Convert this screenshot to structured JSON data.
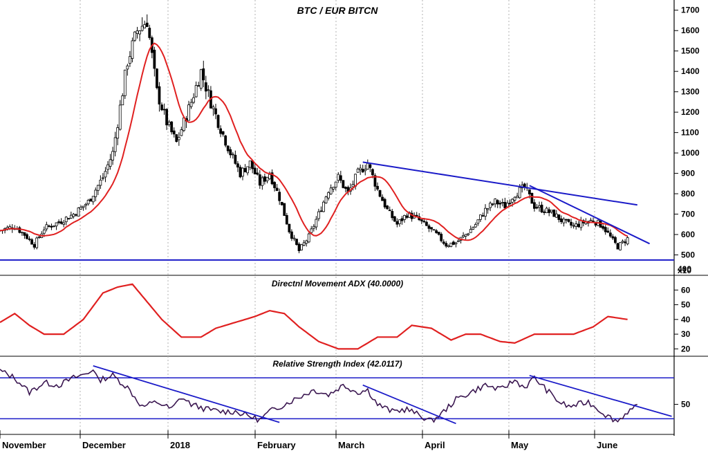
{
  "chart_data": [
    {
      "type": "candlestick",
      "title": "BTC / EUR BITCN",
      "scale_label": "x10",
      "y_ticks": [
        500,
        600,
        700,
        800,
        900,
        1000,
        1100,
        1200,
        1300,
        1400,
        1500,
        1600,
        1700
      ],
      "y_tick_labels": [
        "500",
        "600",
        "700",
        "800",
        "900",
        "1000",
        "1100",
        "1200",
        "1300",
        "1400",
        "1500",
        "1600",
        "1700"
      ],
      "y_extra_label": "400",
      "ylim": [
        400,
        1750
      ],
      "moving_average": {
        "color": "#e02020"
      },
      "price_keypoints": [
        [
          0,
          620
        ],
        [
          6,
          640
        ],
        [
          10,
          600
        ],
        [
          14,
          550
        ],
        [
          18,
          630
        ],
        [
          24,
          660
        ],
        [
          30,
          700
        ],
        [
          36,
          760
        ],
        [
          42,
          880
        ],
        [
          46,
          1000
        ],
        [
          52,
          1450
        ],
        [
          56,
          1600
        ],
        [
          60,
          1650
        ],
        [
          64,
          1300
        ],
        [
          68,
          1150
        ],
        [
          72,
          1050
        ],
        [
          78,
          1250
        ],
        [
          82,
          1400
        ],
        [
          86,
          1250
        ],
        [
          90,
          1120
        ],
        [
          94,
          1000
        ],
        [
          98,
          900
        ],
        [
          102,
          950
        ],
        [
          106,
          850
        ],
        [
          110,
          900
        ],
        [
          114,
          780
        ],
        [
          118,
          620
        ],
        [
          122,
          520
        ],
        [
          126,
          590
        ],
        [
          130,
          700
        ],
        [
          134,
          820
        ],
        [
          138,
          880
        ],
        [
          142,
          800
        ],
        [
          146,
          900
        ],
        [
          150,
          950
        ],
        [
          154,
          820
        ],
        [
          158,
          720
        ],
        [
          162,
          650
        ],
        [
          166,
          700
        ],
        [
          170,
          680
        ],
        [
          174,
          640
        ],
        [
          178,
          600
        ],
        [
          182,
          550
        ],
        [
          186,
          560
        ],
        [
          190,
          600
        ],
        [
          194,
          650
        ],
        [
          198,
          720
        ],
        [
          202,
          760
        ],
        [
          206,
          740
        ],
        [
          210,
          800
        ],
        [
          214,
          830
        ],
        [
          218,
          740
        ],
        [
          222,
          720
        ],
        [
          226,
          700
        ],
        [
          230,
          660
        ],
        [
          234,
          640
        ],
        [
          238,
          660
        ],
        [
          242,
          670
        ],
        [
          246,
          640
        ],
        [
          250,
          570
        ],
        [
          252,
          540
        ],
        [
          256,
          580
        ]
      ],
      "trendlines": [
        {
          "from": [
            148,
            955
          ],
          "to": [
            260,
            745
          ],
          "color": "#1a1ac8"
        },
        {
          "from": [
            216,
            840
          ],
          "to": [
            265,
            555
          ],
          "color": "#1a1ac8"
        }
      ],
      "support": {
        "value": 475,
        "color": "#1a1ac8"
      }
    },
    {
      "type": "line",
      "title": "Directnl Movement ADX (40.0000)",
      "y_ticks": [
        20,
        30,
        40,
        50,
        60
      ],
      "y_tick_labels": [
        "20",
        "30",
        "40",
        "50",
        "60"
      ],
      "ylim": [
        15,
        70
      ],
      "series": [
        {
          "color": "#e02020",
          "keypoints": [
            [
              0,
              38
            ],
            [
              6,
              44
            ],
            [
              12,
              36
            ],
            [
              18,
              30
            ],
            [
              26,
              30
            ],
            [
              34,
              40
            ],
            [
              42,
              58
            ],
            [
              48,
              62
            ],
            [
              54,
              64
            ],
            [
              60,
              52
            ],
            [
              66,
              40
            ],
            [
              74,
              28
            ],
            [
              82,
              28
            ],
            [
              88,
              34
            ],
            [
              96,
              38
            ],
            [
              104,
              42
            ],
            [
              110,
              46
            ],
            [
              116,
              44
            ],
            [
              122,
              35
            ],
            [
              130,
              25
            ],
            [
              138,
              20
            ],
            [
              146,
              20
            ],
            [
              154,
              28
            ],
            [
              162,
              28
            ],
            [
              168,
              36
            ],
            [
              176,
              34
            ],
            [
              184,
              26
            ],
            [
              190,
              30
            ],
            [
              196,
              30
            ],
            [
              204,
              25
            ],
            [
              210,
              24
            ],
            [
              218,
              30
            ],
            [
              226,
              30
            ],
            [
              234,
              30
            ],
            [
              242,
              35
            ],
            [
              248,
              42
            ],
            [
              256,
              40
            ]
          ]
        }
      ]
    },
    {
      "type": "line",
      "title": "Relative Strength Index (42.0117)",
      "y_ticks": [
        50
      ],
      "y_tick_labels": [
        "50"
      ],
      "ylim": [
        25,
        90
      ],
      "reference_lines": [
        72,
        38
      ],
      "series": [
        {
          "color": "#3a1650",
          "keypoints": [
            [
              0,
              78
            ],
            [
              6,
              72
            ],
            [
              12,
              60
            ],
            [
              18,
              68
            ],
            [
              24,
              66
            ],
            [
              30,
              72
            ],
            [
              36,
              76
            ],
            [
              38,
              80
            ],
            [
              40,
              70
            ],
            [
              46,
              74
            ],
            [
              52,
              64
            ],
            [
              58,
              48
            ],
            [
              64,
              52
            ],
            [
              70,
              46
            ],
            [
              74,
              56
            ],
            [
              78,
              50
            ],
            [
              84,
              46
            ],
            [
              90,
              44
            ],
            [
              96,
              44
            ],
            [
              102,
              40
            ],
            [
              106,
              37
            ],
            [
              110,
              44
            ],
            [
              116,
              50
            ],
            [
              122,
              56
            ],
            [
              128,
              62
            ],
            [
              134,
              58
            ],
            [
              140,
              66
            ],
            [
              146,
              60
            ],
            [
              150,
              62
            ],
            [
              154,
              50
            ],
            [
              160,
              44
            ],
            [
              166,
              46
            ],
            [
              170,
              42
            ],
            [
              176,
              36
            ],
            [
              180,
              42
            ],
            [
              186,
              54
            ],
            [
              192,
              60
            ],
            [
              198,
              66
            ],
            [
              204,
              62
            ],
            [
              210,
              70
            ],
            [
              214,
              64
            ],
            [
              218,
              72
            ],
            [
              222,
              64
            ],
            [
              228,
              52
            ],
            [
              232,
              48
            ],
            [
              236,
              50
            ],
            [
              240,
              52
            ],
            [
              244,
              46
            ],
            [
              248,
              40
            ],
            [
              252,
              36
            ],
            [
              256,
              44
            ],
            [
              260,
              48
            ]
          ]
        }
      ],
      "trendlines": [
        {
          "from": [
            38,
            82
          ],
          "to": [
            114,
            35
          ],
          "color": "#1a1ac8"
        },
        {
          "from": [
            148,
            66
          ],
          "to": [
            186,
            34
          ],
          "color": "#1a1ac8"
        },
        {
          "from": [
            216,
            74
          ],
          "to": [
            274,
            40
          ],
          "color": "#1a1ac8"
        }
      ]
    }
  ],
  "x_axis": {
    "labels": [
      "November",
      "December",
      "2018",
      "February",
      "March",
      "April",
      "May",
      "June"
    ]
  },
  "colors": {
    "candle": "#000000",
    "axis": "#000000",
    "grid": "#b0b0b0"
  }
}
